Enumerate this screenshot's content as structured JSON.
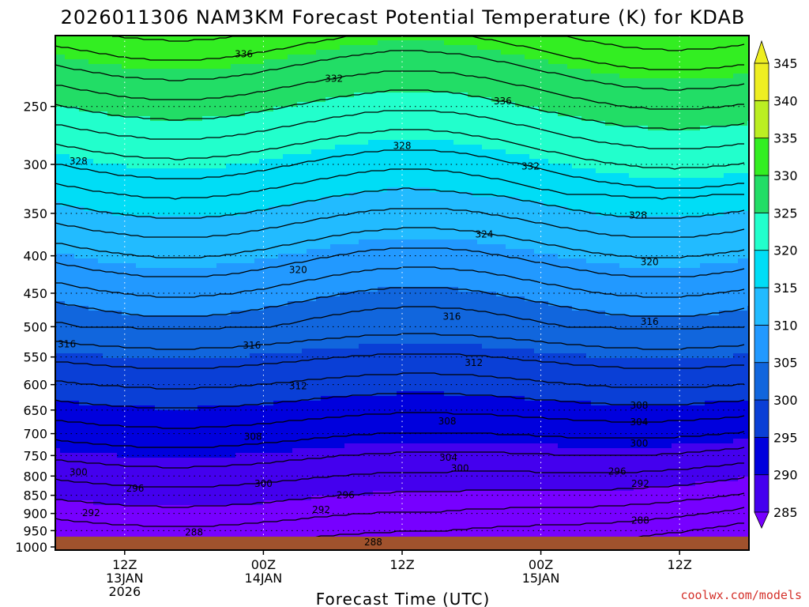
{
  "chart_data": {
    "type": "heatmap",
    "title": "2026011306 NAM3KM Forecast Potential Temperature (K) for KDAB",
    "xlabel": "Forecast Time (UTC)",
    "ylabel": "",
    "credit": "coolwx.com/models",
    "pressure_ticks": [
      250,
      300,
      350,
      400,
      450,
      500,
      550,
      600,
      650,
      700,
      750,
      800,
      850,
      900,
      950,
      1000
    ],
    "pressure_tick_labels": [
      "250",
      "300",
      "350",
      "400",
      "450",
      "500",
      "550",
      "600",
      "650",
      "700",
      "750",
      "800",
      "850",
      "900",
      "950",
      "1000"
    ],
    "y_range_hpa": [
      200,
      1010
    ],
    "y_scale": "log",
    "x_range_hours_from_run": [
      0,
      60
    ],
    "x_ticks": [
      {
        "hour": 6,
        "labels": [
          "12Z",
          "13JAN",
          "2026"
        ]
      },
      {
        "hour": 18,
        "labels": [
          "00Z",
          "14JAN"
        ]
      },
      {
        "hour": 30,
        "labels": [
          "12Z"
        ]
      },
      {
        "hour": 42,
        "labels": [
          "00Z",
          "15JAN"
        ]
      },
      {
        "hour": 54,
        "labels": [
          "12Z"
        ]
      }
    ],
    "grid": "dotted",
    "colorbar": {
      "levels": [
        285,
        290,
        295,
        300,
        305,
        310,
        315,
        320,
        325,
        330,
        335,
        340,
        345
      ],
      "level_labels": [
        "285",
        "290",
        "295",
        "300",
        "305",
        "310",
        "315",
        "320",
        "325",
        "330",
        "335",
        "340",
        "345"
      ],
      "colors": [
        "#7700ff",
        "#4400ee",
        "#0000dd",
        "#0a3fd6",
        "#1166dd",
        "#2299ff",
        "#22bbff",
        "#00ddf6",
        "#22ffcc",
        "#22dd66",
        "#33ee22",
        "#bbee22",
        "#eeee22"
      ]
    },
    "ground_color": "#a0522d",
    "isotherm_labels": [
      {
        "value": "336",
        "hour": 16.3,
        "hpa": 212
      },
      {
        "value": "332",
        "hour": 24.1,
        "hpa": 229
      },
      {
        "value": "336",
        "hour": 38.7,
        "hpa": 246
      },
      {
        "value": "328",
        "hour": 2.0,
        "hpa": 297
      },
      {
        "value": "328",
        "hour": 30.0,
        "hpa": 283
      },
      {
        "value": "332",
        "hour": 41.1,
        "hpa": 302
      },
      {
        "value": "328",
        "hour": 50.4,
        "hpa": 352
      },
      {
        "value": "324",
        "hour": 37.1,
        "hpa": 374
      },
      {
        "value": "320",
        "hour": 21.0,
        "hpa": 418
      },
      {
        "value": "320",
        "hour": 51.4,
        "hpa": 408
      },
      {
        "value": "316",
        "hour": 34.3,
        "hpa": 484
      },
      {
        "value": "316",
        "hour": 51.4,
        "hpa": 492
      },
      {
        "value": "316",
        "hour": 1.0,
        "hpa": 528
      },
      {
        "value": "316",
        "hour": 17.0,
        "hpa": 530
      },
      {
        "value": "312",
        "hour": 36.2,
        "hpa": 560
      },
      {
        "value": "312",
        "hour": 21.0,
        "hpa": 603
      },
      {
        "value": "308",
        "hour": 50.5,
        "hpa": 641
      },
      {
        "value": "308",
        "hour": 33.9,
        "hpa": 673
      },
      {
        "value": "304",
        "hour": 50.5,
        "hpa": 675
      },
      {
        "value": "308",
        "hour": 17.1,
        "hpa": 707
      },
      {
        "value": "300",
        "hour": 50.5,
        "hpa": 722
      },
      {
        "value": "304",
        "hour": 34.0,
        "hpa": 755
      },
      {
        "value": "300",
        "hour": 35.0,
        "hpa": 781
      },
      {
        "value": "300",
        "hour": 2.0,
        "hpa": 791
      },
      {
        "value": "296",
        "hour": 48.6,
        "hpa": 789
      },
      {
        "value": "300",
        "hour": 18.0,
        "hpa": 820
      },
      {
        "value": "296",
        "hour": 6.9,
        "hpa": 832
      },
      {
        "value": "292",
        "hour": 50.6,
        "hpa": 820
      },
      {
        "value": "296",
        "hour": 25.1,
        "hpa": 850
      },
      {
        "value": "292",
        "hour": 3.1,
        "hpa": 898
      },
      {
        "value": "292",
        "hour": 23.0,
        "hpa": 890
      },
      {
        "value": "288",
        "hour": 50.6,
        "hpa": 920
      },
      {
        "value": "288",
        "hour": 12.0,
        "hpa": 955
      },
      {
        "value": "288",
        "hour": 27.5,
        "hpa": 985
      }
    ]
  }
}
